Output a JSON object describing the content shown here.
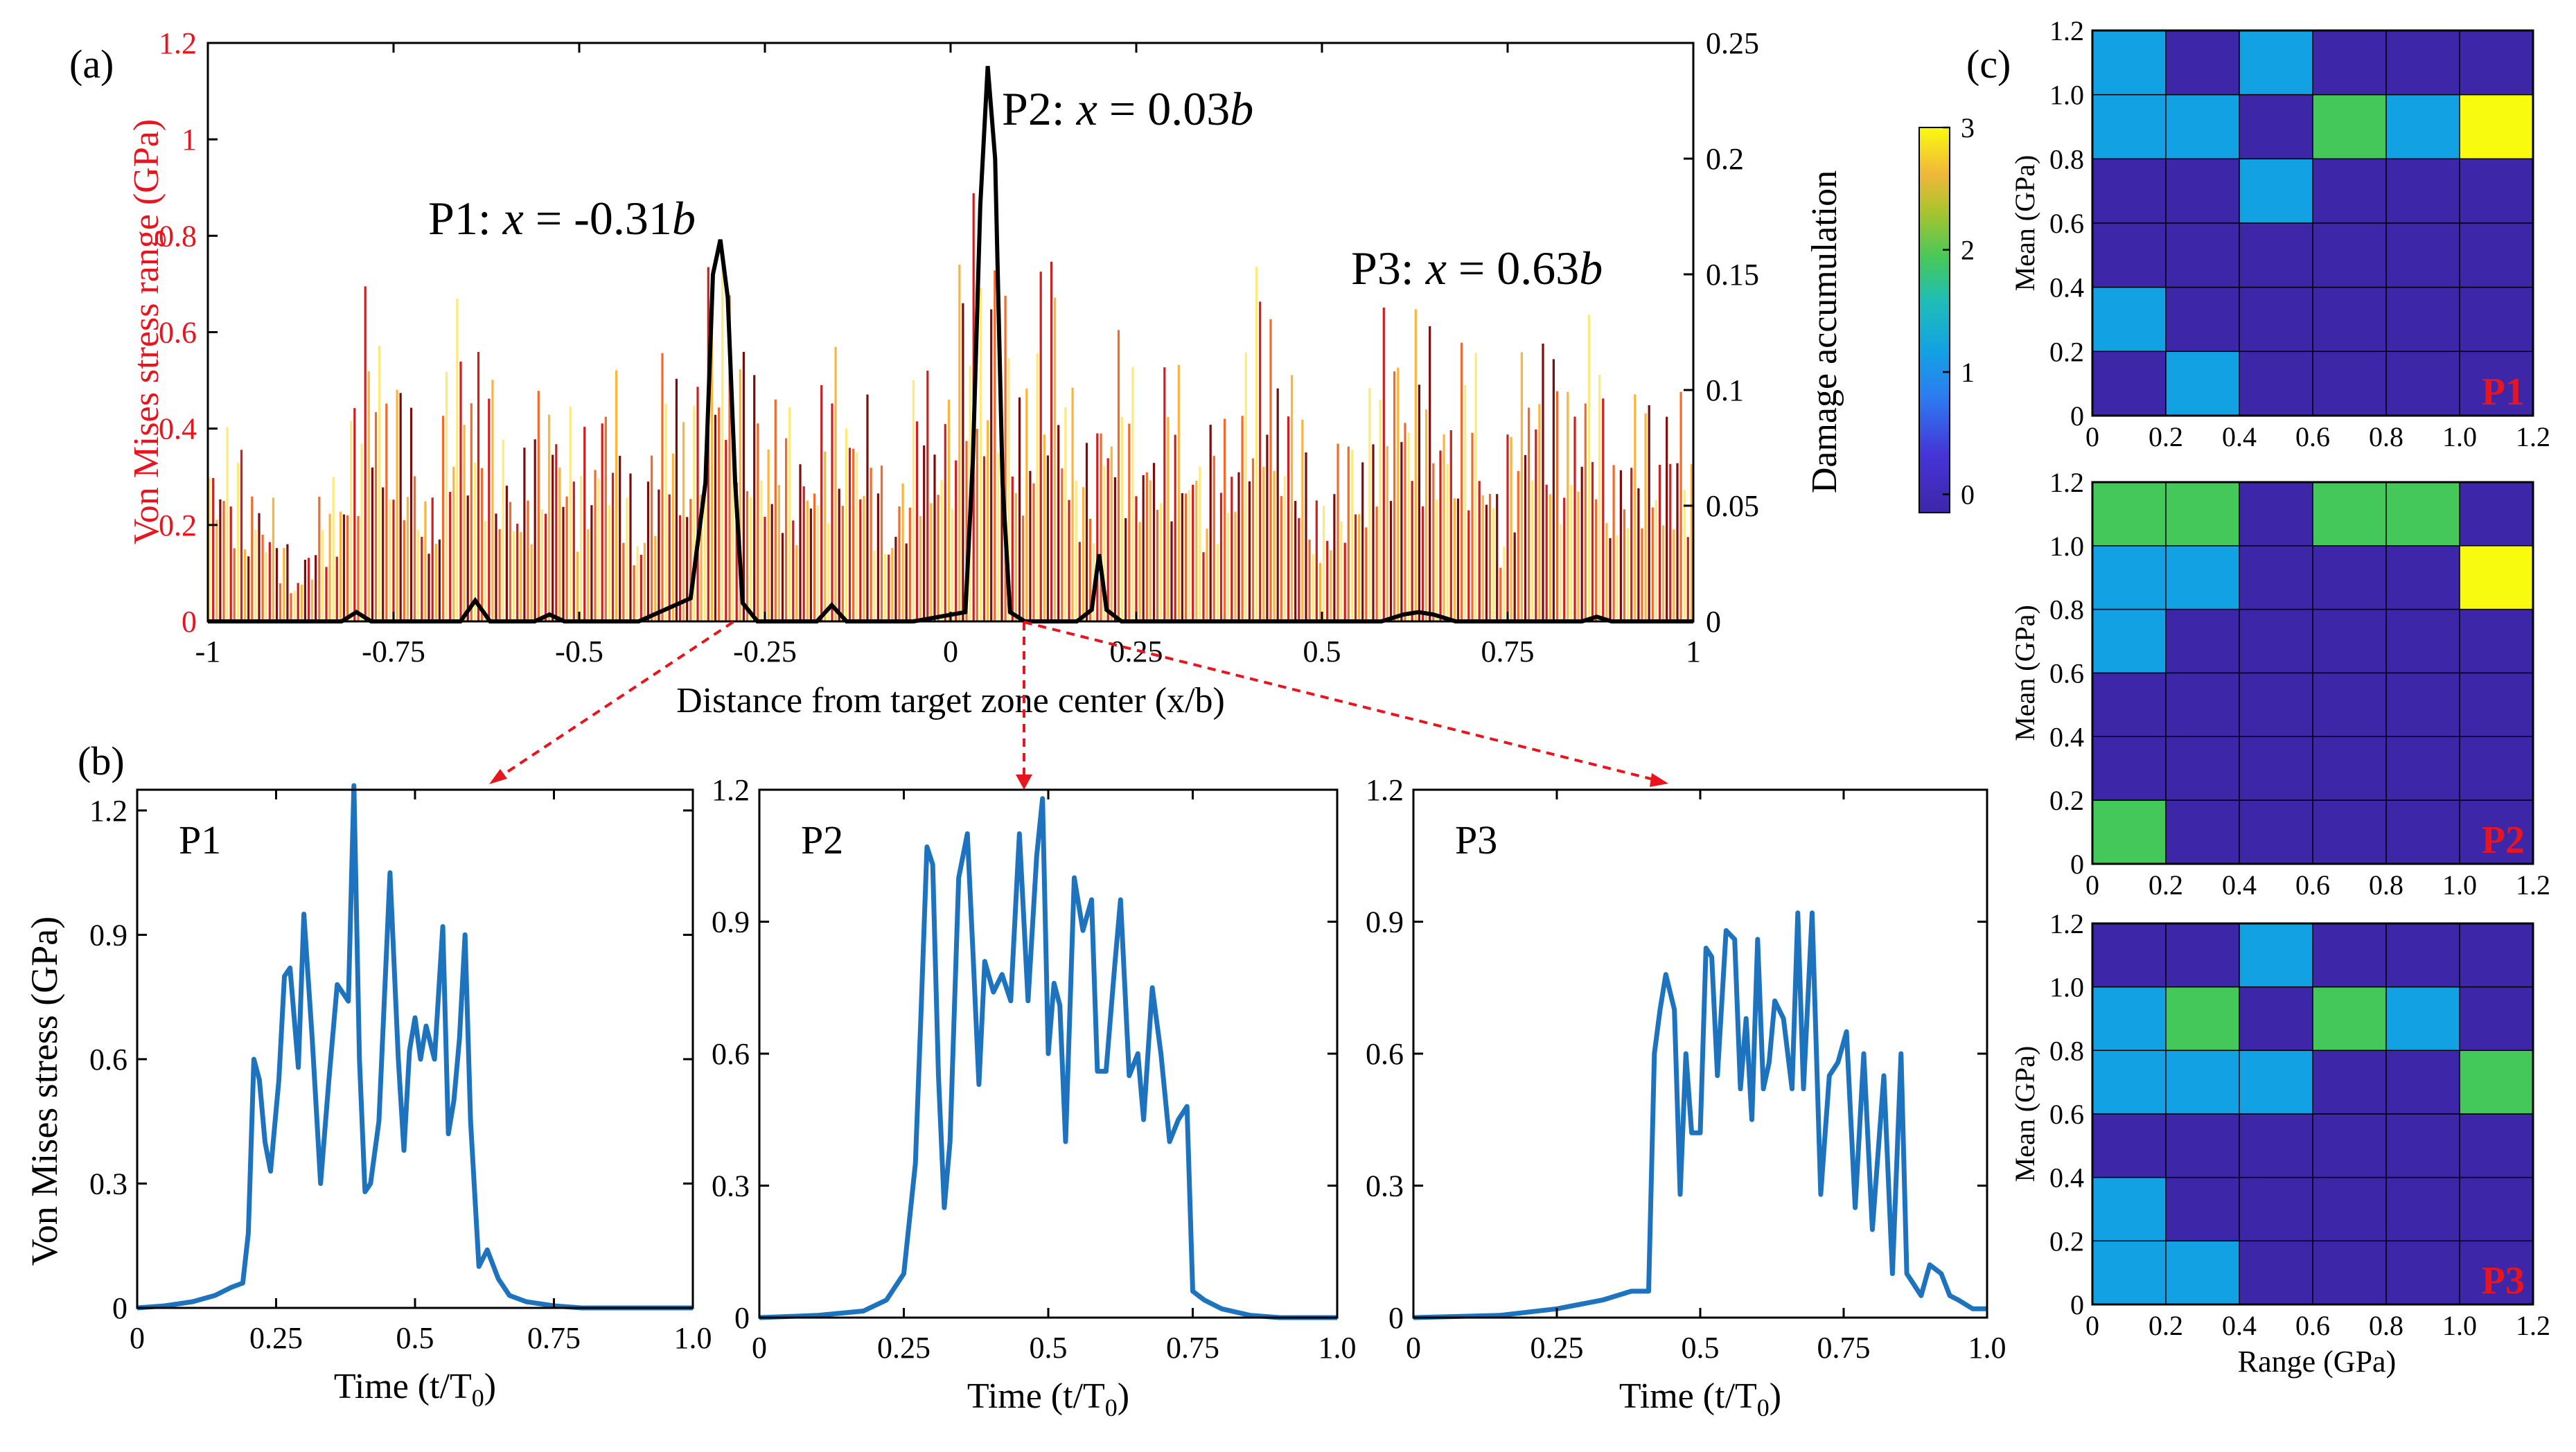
{
  "panel_labels": {
    "a": "(a)",
    "b": "(b)",
    "c": "(c)"
  },
  "chart_data": [
    {
      "id": "a",
      "type": "bar",
      "xlabel": "Distance from target zone center (x/b)",
      "ylabel_left": "Von Mises stress range (GPa)",
      "ylabel_right": "Damage accumulation",
      "xlim": [
        -1,
        1
      ],
      "ylim_left": [
        0,
        1.2
      ],
      "ylim_right": [
        0,
        0.25
      ],
      "xticks": [
        "-1",
        "-0.75",
        "-0.5",
        "-0.25",
        "0",
        "0.25",
        "0.5",
        "0.75",
        "1"
      ],
      "yticks_left": [
        "0",
        "0.2",
        "0.4",
        "0.6",
        "0.8",
        "1",
        "1.2"
      ],
      "yticks_right": [
        "0",
        "0.05",
        "0.1",
        "0.15",
        "0.2",
        "0.25"
      ],
      "colors": {
        "left_axis": "#e8141e",
        "damage_line": "#000000",
        "bars": [
          "#ffe978",
          "#ffb338",
          "#f46a2a",
          "#cf1f1f",
          "#7c0d0d"
        ]
      },
      "annotations": [
        {
          "label": "P1",
          "sep": ":",
          "var": "x",
          "eq": "=",
          "value": "-0.31",
          "unit": "b",
          "x": -0.31
        },
        {
          "label": "P2",
          "sep": ":",
          "var": "x",
          "eq": "=",
          "value": "0.03",
          "unit": "b",
          "x": 0.03
        },
        {
          "label": "P3",
          "sep": ":",
          "var": "x",
          "eq": "=",
          "value": "0.63",
          "unit": "b",
          "x": 0.63
        }
      ],
      "damage_series": {
        "name": "Damage accumulation",
        "x": [
          -1,
          -0.9,
          -0.82,
          -0.8,
          -0.78,
          -0.7,
          -0.66,
          -0.64,
          -0.62,
          -0.56,
          -0.54,
          -0.52,
          -0.42,
          -0.35,
          -0.33,
          -0.32,
          -0.31,
          -0.3,
          -0.29,
          -0.28,
          -0.26,
          -0.2,
          -0.18,
          -0.16,
          -0.14,
          -0.12,
          -0.05,
          0.02,
          0.03,
          0.04,
          0.05,
          0.06,
          0.07,
          0.08,
          0.1,
          0.17,
          0.19,
          0.2,
          0.21,
          0.23,
          0.4,
          0.58,
          0.61,
          0.63,
          0.65,
          0.68,
          0.8,
          0.85,
          0.87,
          0.89,
          1
        ],
        "y": [
          0,
          0,
          0,
          0.004,
          0,
          0,
          0,
          0.009,
          0,
          0,
          0.003,
          0,
          0,
          0.01,
          0.06,
          0.15,
          0.165,
          0.14,
          0.06,
          0.008,
          0,
          0,
          0,
          0.007,
          0,
          0,
          0,
          0.004,
          0.07,
          0.18,
          0.24,
          0.2,
          0.06,
          0.004,
          0,
          0,
          0.005,
          0.029,
          0.005,
          0,
          0,
          0,
          0.003,
          0.004,
          0.003,
          0,
          0,
          0,
          0.002,
          0,
          0
        ]
      },
      "stress_envelope": {
        "x": [
          -1,
          -0.92,
          -0.88,
          -0.82,
          -0.78,
          -0.74,
          -0.7,
          -0.66,
          -0.62,
          -0.58,
          -0.54,
          -0.5,
          -0.46,
          -0.42,
          -0.38,
          -0.34,
          -0.31,
          -0.28,
          -0.24,
          -0.2,
          -0.16,
          -0.12,
          -0.08,
          -0.04,
          0,
          0.03,
          0.06,
          0.1,
          0.14,
          0.18,
          0.22,
          0.26,
          0.3,
          0.34,
          0.38,
          0.42,
          0.46,
          0.5,
          0.54,
          0.58,
          0.62,
          0.66,
          0.7,
          0.74,
          0.78,
          0.82,
          0.86,
          0.9,
          0.94,
          1
        ],
        "y": [
          0.5,
          0.3,
          0.12,
          0.4,
          0.78,
          0.55,
          0.3,
          0.8,
          0.55,
          0.35,
          0.6,
          0.4,
          0.62,
          0.25,
          0.65,
          0.55,
          1.05,
          0.6,
          0.55,
          0.4,
          0.6,
          0.55,
          0.25,
          0.6,
          0.55,
          1.1,
          0.8,
          0.6,
          0.9,
          0.35,
          0.7,
          0.45,
          0.6,
          0.4,
          0.5,
          0.85,
          0.55,
          0.3,
          0.45,
          0.65,
          0.75,
          0.55,
          0.65,
          0.3,
          0.75,
          0.55,
          0.68,
          0.4,
          0.55,
          0.45
        ]
      }
    },
    {
      "id": "b1",
      "type": "line",
      "title": "P1",
      "xlabel": "Time (t/T",
      "xlabel_sub": "0",
      "xlabel_end": ")",
      "ylabel": "Von Mises stress (GPa)",
      "xlim": [
        0,
        1
      ],
      "ylim": [
        0,
        1.25
      ],
      "xticks": [
        "0",
        "0.25",
        "0.5",
        "0.75",
        "1.0"
      ],
      "yticks": [
        "0",
        "0.3",
        "0.6",
        "0.9",
        "1.2"
      ],
      "line_color": "#1e73be",
      "series": [
        {
          "x": [
            0,
            0.05,
            0.1,
            0.14,
            0.17,
            0.19,
            0.2,
            0.21,
            0.22,
            0.23,
            0.24,
            0.255,
            0.265,
            0.275,
            0.29,
            0.3,
            0.315,
            0.33,
            0.345,
            0.36,
            0.38,
            0.39,
            0.4,
            0.41,
            0.42,
            0.435,
            0.445,
            0.455,
            0.47,
            0.48,
            0.49,
            0.5,
            0.51,
            0.52,
            0.535,
            0.55,
            0.56,
            0.57,
            0.58,
            0.59,
            0.6,
            0.615,
            0.63,
            0.65,
            0.67,
            0.7,
            0.75,
            0.8,
            0.9,
            1
          ],
          "y": [
            0,
            0.005,
            0.015,
            0.03,
            0.05,
            0.06,
            0.18,
            0.6,
            0.55,
            0.4,
            0.33,
            0.55,
            0.8,
            0.82,
            0.58,
            0.95,
            0.65,
            0.3,
            0.55,
            0.78,
            0.74,
            1.26,
            0.6,
            0.28,
            0.3,
            0.45,
            0.75,
            1.05,
            0.6,
            0.38,
            0.62,
            0.7,
            0.6,
            0.68,
            0.6,
            0.92,
            0.42,
            0.5,
            0.65,
            0.9,
            0.45,
            0.1,
            0.14,
            0.07,
            0.03,
            0.015,
            0.005,
            0,
            0,
            0
          ]
        }
      ]
    },
    {
      "id": "b2",
      "type": "line",
      "title": "P2",
      "xlabel": "Time (t/T",
      "xlabel_sub": "0",
      "xlabel_end": ")",
      "xlim": [
        0,
        1
      ],
      "ylim": [
        0,
        1.2
      ],
      "xticks": [
        "0",
        "0.25",
        "0.5",
        "0.75",
        "1.0"
      ],
      "yticks": [
        "0",
        "0.3",
        "0.6",
        "0.9",
        "1.2"
      ],
      "line_color": "#1e73be",
      "series": [
        {
          "x": [
            0,
            0.1,
            0.18,
            0.22,
            0.25,
            0.27,
            0.28,
            0.29,
            0.3,
            0.31,
            0.32,
            0.33,
            0.345,
            0.36,
            0.37,
            0.38,
            0.39,
            0.405,
            0.42,
            0.435,
            0.45,
            0.465,
            0.48,
            0.49,
            0.5,
            0.51,
            0.52,
            0.53,
            0.545,
            0.56,
            0.575,
            0.585,
            0.6,
            0.615,
            0.625,
            0.64,
            0.655,
            0.665,
            0.68,
            0.695,
            0.71,
            0.725,
            0.74,
            0.75,
            0.76,
            0.77,
            0.8,
            0.85,
            0.9,
            1
          ],
          "y": [
            0,
            0.005,
            0.015,
            0.04,
            0.1,
            0.35,
            0.7,
            1.07,
            1.03,
            0.55,
            0.25,
            0.4,
            1.0,
            1.1,
            0.82,
            0.53,
            0.81,
            0.74,
            0.78,
            0.72,
            1.1,
            0.72,
            1.05,
            1.18,
            0.6,
            0.76,
            0.71,
            0.4,
            1.0,
            0.88,
            0.95,
            0.56,
            0.56,
            0.8,
            0.95,
            0.55,
            0.6,
            0.45,
            0.75,
            0.6,
            0.4,
            0.45,
            0.48,
            0.06,
            0.05,
            0.04,
            0.02,
            0.005,
            0,
            0
          ]
        }
      ]
    },
    {
      "id": "b3",
      "type": "line",
      "title": "P3",
      "xlabel": "Time (t/T",
      "xlabel_sub": "0",
      "xlabel_end": ")",
      "xlim": [
        0,
        1
      ],
      "ylim": [
        0,
        1.2
      ],
      "xticks": [
        "0",
        "0.25",
        "0.5",
        "0.75",
        "1.0"
      ],
      "yticks": [
        "0",
        "0.3",
        "0.6",
        "0.9",
        "1.2"
      ],
      "line_color": "#1e73be",
      "series": [
        {
          "x": [
            0,
            0.15,
            0.25,
            0.33,
            0.38,
            0.41,
            0.42,
            0.43,
            0.44,
            0.455,
            0.465,
            0.475,
            0.485,
            0.5,
            0.51,
            0.52,
            0.53,
            0.545,
            0.56,
            0.57,
            0.58,
            0.59,
            0.6,
            0.61,
            0.62,
            0.63,
            0.645,
            0.66,
            0.67,
            0.68,
            0.695,
            0.71,
            0.725,
            0.74,
            0.755,
            0.77,
            0.785,
            0.8,
            0.82,
            0.835,
            0.85,
            0.86,
            0.87,
            0.885,
            0.9,
            0.92,
            0.935,
            0.95,
            0.975,
            1
          ],
          "y": [
            0,
            0.005,
            0.02,
            0.04,
            0.06,
            0.06,
            0.6,
            0.7,
            0.78,
            0.7,
            0.28,
            0.6,
            0.42,
            0.42,
            0.84,
            0.82,
            0.55,
            0.88,
            0.86,
            0.52,
            0.68,
            0.45,
            0.86,
            0.52,
            0.58,
            0.72,
            0.68,
            0.52,
            0.92,
            0.52,
            0.92,
            0.28,
            0.55,
            0.58,
            0.65,
            0.25,
            0.6,
            0.2,
            0.55,
            0.1,
            0.6,
            0.1,
            0.08,
            0.05,
            0.12,
            0.1,
            0.05,
            0.04,
            0.02,
            0.02
          ]
        }
      ]
    },
    {
      "id": "c1",
      "type": "heatmap",
      "label": "P1",
      "ylabel": "Mean (GPa)",
      "xticks": [
        "0",
        "0.2",
        "0.4",
        "0.6",
        "0.8",
        "1.0",
        "1.2"
      ],
      "yticks": [
        "0",
        "0.2",
        "0.4",
        "0.6",
        "0.8",
        "1.0",
        "1.2"
      ],
      "rows_top_to_bottom": [
        [
          1,
          0,
          1,
          0,
          0,
          0
        ],
        [
          1,
          1,
          0,
          2,
          1,
          3
        ],
        [
          0,
          0,
          1,
          0,
          0,
          0
        ],
        [
          0,
          0,
          0,
          0,
          0,
          0
        ],
        [
          1,
          0,
          0,
          0,
          0,
          0
        ],
        [
          0,
          1,
          0,
          0,
          0,
          0
        ]
      ]
    },
    {
      "id": "c2",
      "type": "heatmap",
      "label": "P2",
      "ylabel": "Mean (GPa)",
      "xticks": [
        "0",
        "0.2",
        "0.4",
        "0.6",
        "0.8",
        "1.0",
        "1.2"
      ],
      "yticks": [
        "0",
        "0.2",
        "0.4",
        "0.6",
        "0.8",
        "1.0",
        "1.2"
      ],
      "rows_top_to_bottom": [
        [
          2,
          2,
          0,
          2,
          2,
          0
        ],
        [
          1,
          1,
          0,
          0,
          0,
          3
        ],
        [
          1,
          0,
          0,
          0,
          0,
          0
        ],
        [
          0,
          0,
          0,
          0,
          0,
          0
        ],
        [
          0,
          0,
          0,
          0,
          0,
          0
        ],
        [
          2,
          0,
          0,
          0,
          0,
          0
        ]
      ]
    },
    {
      "id": "c3",
      "type": "heatmap",
      "label": "P3",
      "ylabel": "Mean (GPa)",
      "xlabel": "Range (GPa)",
      "xticks": [
        "0",
        "0.2",
        "0.4",
        "0.6",
        "0.8",
        "1.0",
        "1.2"
      ],
      "yticks": [
        "0",
        "0.2",
        "0.4",
        "0.6",
        "0.8",
        "1.0",
        "1.2"
      ],
      "rows_top_to_bottom": [
        [
          0,
          0,
          1,
          0,
          0,
          0
        ],
        [
          1,
          2,
          0,
          2,
          1,
          0
        ],
        [
          1,
          1,
          1,
          0,
          0,
          2
        ],
        [
          0,
          0,
          0,
          0,
          0,
          0
        ],
        [
          1,
          0,
          0,
          0,
          0,
          0
        ],
        [
          1,
          1,
          0,
          0,
          0,
          0
        ]
      ]
    }
  ],
  "colorbar": {
    "ticks": [
      "0",
      "1",
      "2",
      "3"
    ],
    "colors": {
      "0": "#3e26a8",
      "1": "#12a2e3",
      "2": "#45c85a",
      "3": "#f9fb0e"
    }
  }
}
